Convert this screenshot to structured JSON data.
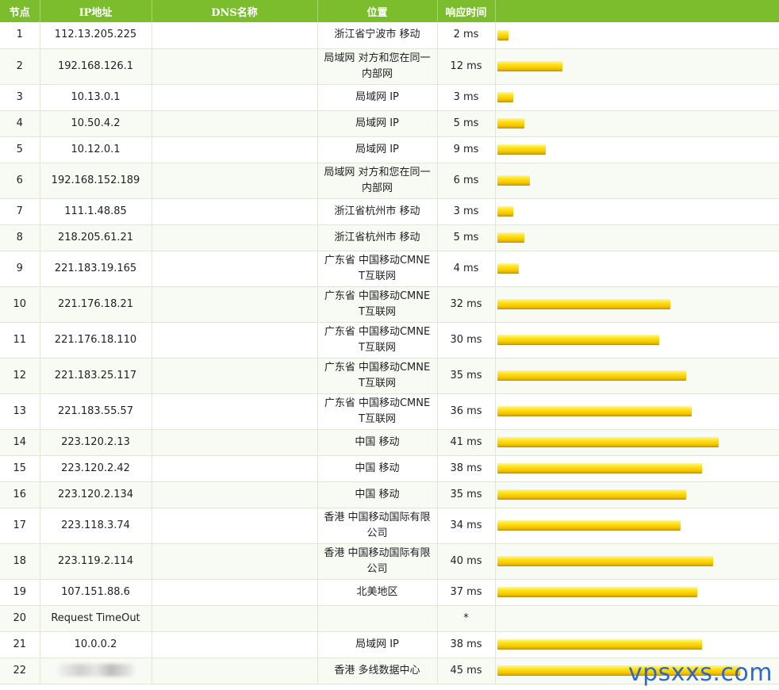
{
  "headers": {
    "node": "节点",
    "ip": "IP地址",
    "dns": "DNS名称",
    "location": "位置",
    "response": "响应时间"
  },
  "bar_color": "#f6c700",
  "header_color": "#7cbd2e",
  "watermark": "vpsxxs.com",
  "rows": [
    {
      "node": "1",
      "ip": "112.13.205.225",
      "dns": "",
      "location": "浙江省宁波市 移动",
      "time": "2 ms",
      "ms": 2
    },
    {
      "node": "2",
      "ip": "192.168.126.1",
      "dns": "",
      "location": "局域网 对方和您在同一内部网",
      "time": "12 ms",
      "ms": 12
    },
    {
      "node": "3",
      "ip": "10.13.0.1",
      "dns": "",
      "location": "局域网 IP",
      "time": "3 ms",
      "ms": 3
    },
    {
      "node": "4",
      "ip": "10.50.4.2",
      "dns": "",
      "location": "局域网 IP",
      "time": "5 ms",
      "ms": 5
    },
    {
      "node": "5",
      "ip": "10.12.0.1",
      "dns": "",
      "location": "局域网 IP",
      "time": "9 ms",
      "ms": 9
    },
    {
      "node": "6",
      "ip": "192.168.152.189",
      "dns": "",
      "location": "局域网 对方和您在同一内部网",
      "time": "6 ms",
      "ms": 6
    },
    {
      "node": "7",
      "ip": "111.1.48.85",
      "dns": "",
      "location": "浙江省杭州市 移动",
      "time": "3 ms",
      "ms": 3
    },
    {
      "node": "8",
      "ip": "218.205.61.21",
      "dns": "",
      "location": "浙江省杭州市 移动",
      "time": "5 ms",
      "ms": 5
    },
    {
      "node": "9",
      "ip": "221.183.19.165",
      "dns": "",
      "location": "广东省 中国移动CMNET互联网",
      "time": "4 ms",
      "ms": 4
    },
    {
      "node": "10",
      "ip": "221.176.18.21",
      "dns": "",
      "location": "广东省 中国移动CMNET互联网",
      "time": "32 ms",
      "ms": 32
    },
    {
      "node": "11",
      "ip": "221.176.18.110",
      "dns": "",
      "location": "广东省 中国移动CMNET互联网",
      "time": "30 ms",
      "ms": 30
    },
    {
      "node": "12",
      "ip": "221.183.25.117",
      "dns": "",
      "location": "广东省 中国移动CMNET互联网",
      "time": "35 ms",
      "ms": 35
    },
    {
      "node": "13",
      "ip": "221.183.55.57",
      "dns": "",
      "location": "广东省 中国移动CMNET互联网",
      "time": "36 ms",
      "ms": 36
    },
    {
      "node": "14",
      "ip": "223.120.2.13",
      "dns": "",
      "location": "中国 移动",
      "time": "41 ms",
      "ms": 41
    },
    {
      "node": "15",
      "ip": "223.120.2.42",
      "dns": "",
      "location": "中国 移动",
      "time": "38 ms",
      "ms": 38
    },
    {
      "node": "16",
      "ip": "223.120.2.134",
      "dns": "",
      "location": "中国 移动",
      "time": "35 ms",
      "ms": 35
    },
    {
      "node": "17",
      "ip": "223.118.3.74",
      "dns": "",
      "location": "香港 中国移动国际有限公司",
      "time": "34 ms",
      "ms": 34
    },
    {
      "node": "18",
      "ip": "223.119.2.114",
      "dns": "",
      "location": "香港 中国移动国际有限公司",
      "time": "40 ms",
      "ms": 40
    },
    {
      "node": "19",
      "ip": "107.151.88.6",
      "dns": "",
      "location": "北美地区",
      "time": "37 ms",
      "ms": 37
    },
    {
      "node": "20",
      "ip": "Request TimeOut",
      "dns": "",
      "location": "",
      "time": "*",
      "ms": null
    },
    {
      "node": "21",
      "ip": "10.0.0.2",
      "dns": "",
      "location": "局域网 IP",
      "time": "38 ms",
      "ms": 38
    },
    {
      "node": "22",
      "ip": "",
      "ip_redacted": true,
      "dns": "",
      "location": "香港 多线数据中心",
      "time": "45 ms",
      "ms": 45
    }
  ]
}
